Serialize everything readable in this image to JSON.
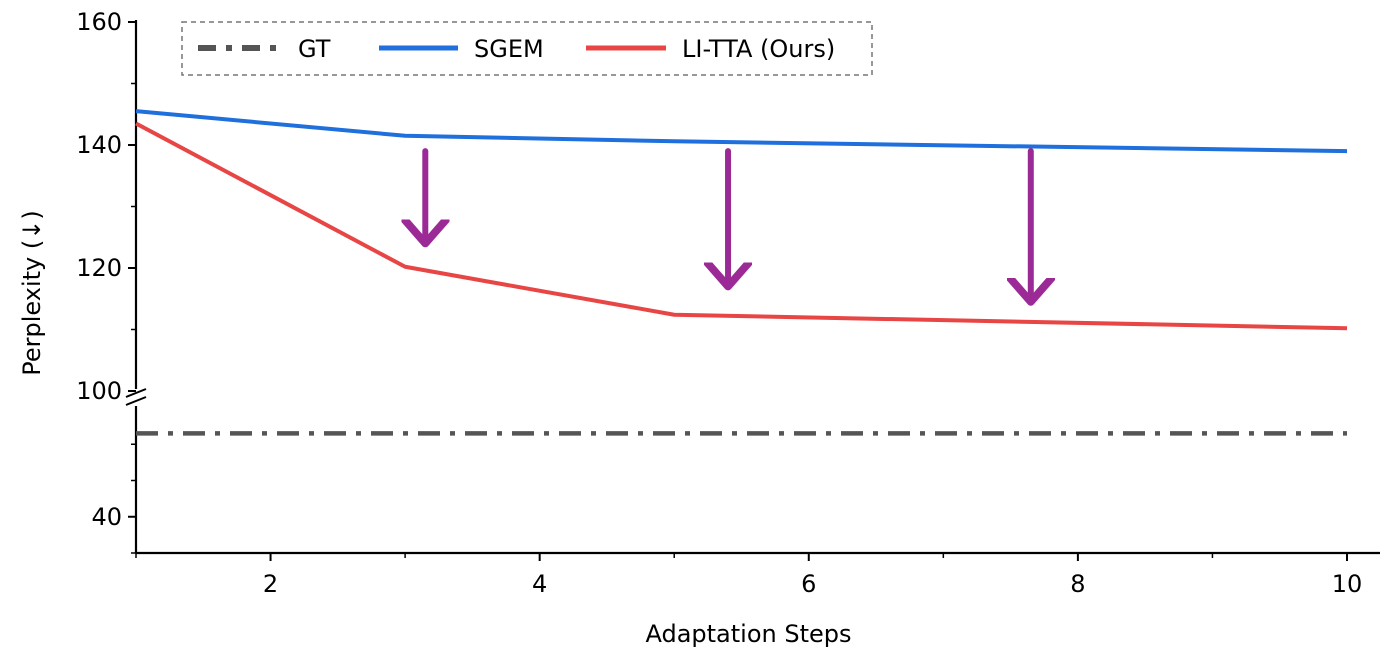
{
  "chart_data": {
    "type": "line",
    "title": "",
    "xlabel": "Adaptation Steps",
    "ylabel": "Perplexity (↓)",
    "xlim": [
      1,
      10
    ],
    "x_ticks": [
      2,
      4,
      6,
      8,
      10
    ],
    "y_axis_broken": true,
    "y_ranges": {
      "lower": [
        30,
        70
      ],
      "upper": [
        100,
        160
      ]
    },
    "y_ticks": [
      {
        "value": 40,
        "label": "40"
      },
      {
        "value": 100,
        "label": "100"
      },
      {
        "value": 120,
        "label": "120"
      },
      {
        "value": 140,
        "label": "140"
      },
      {
        "value": 160,
        "label": "160"
      }
    ],
    "series": [
      {
        "name": "GT",
        "style": "dash-dot",
        "color": "#555555",
        "x": [
          1,
          10
        ],
        "y": [
          63,
          63
        ]
      },
      {
        "name": "SGEM",
        "style": "solid",
        "color": "#1f6fdc",
        "x": [
          1,
          3,
          5,
          10
        ],
        "y": [
          145.5,
          141.5,
          140.6,
          139
        ]
      },
      {
        "name": "LI-TTA (Ours)",
        "style": "solid",
        "color": "#e84545",
        "x": [
          1,
          3,
          5,
          10
        ],
        "y": [
          143.5,
          120.2,
          112.4,
          110.2
        ]
      }
    ],
    "annotations": [
      {
        "type": "arrow",
        "color": "#9b2a96",
        "x": 3.15,
        "from_y": 139,
        "to_y": 124
      },
      {
        "type": "arrow",
        "color": "#9b2a96",
        "x": 5.4,
        "from_y": 139,
        "to_y": 117
      },
      {
        "type": "arrow",
        "color": "#9b2a96",
        "x": 7.65,
        "from_y": 139,
        "to_y": 114.5
      }
    ],
    "legend": {
      "position": "top-left",
      "entries": [
        "GT",
        "SGEM",
        "LI-TTA (Ours)"
      ]
    }
  }
}
